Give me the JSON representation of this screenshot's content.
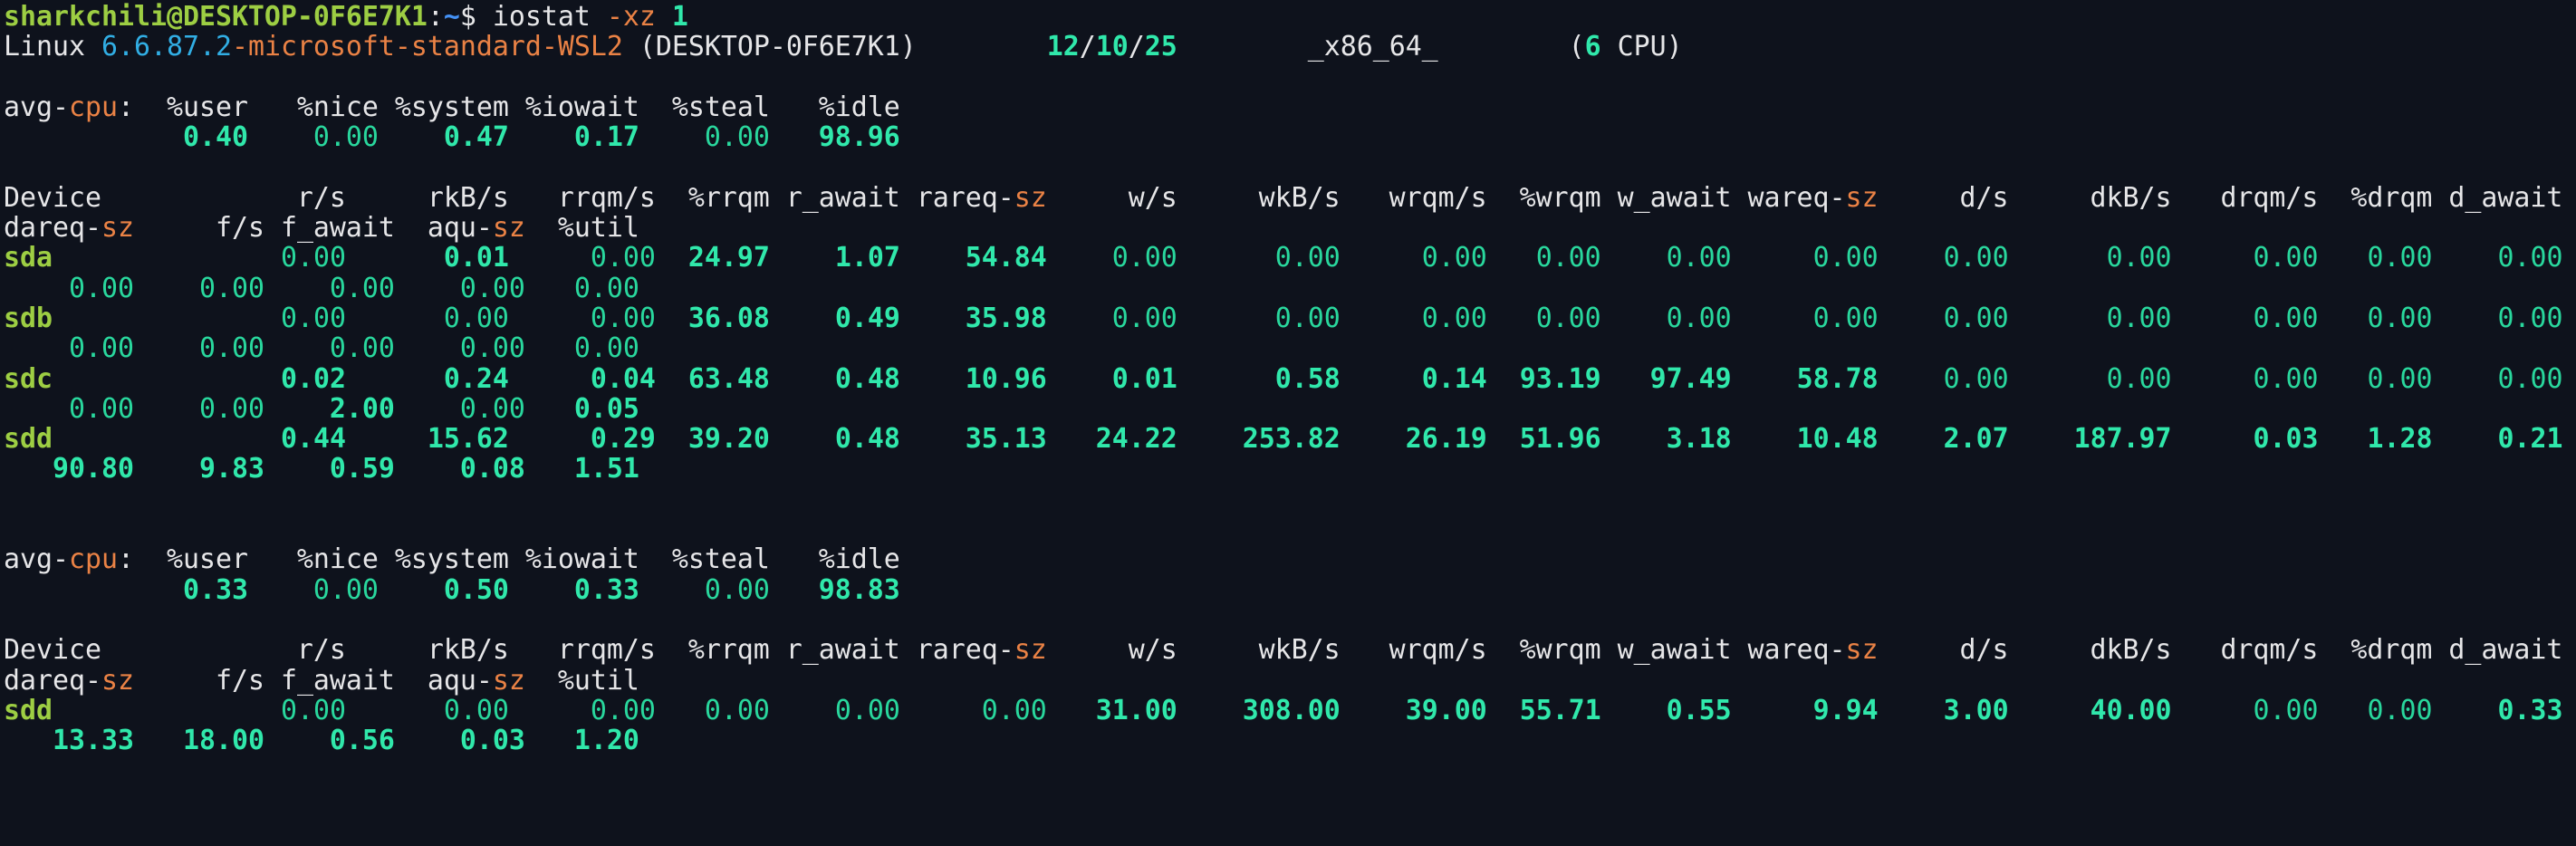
{
  "terminal": {
    "prompt": {
      "user_host": "sharkchili@DESKTOP-0F6E7K1",
      "path": "~",
      "symbol": "$"
    },
    "command": "iostat -xz 1",
    "system": {
      "os": "Linux",
      "kernel": "6.6.87.2-microsoft-standard-WSL2",
      "hostname": "DESKTOP-0F6E7K1",
      "date": "12/10/25",
      "arch": "_x86_64_",
      "cpu_count": "6",
      "cpu_label": "CPU"
    },
    "cpu_columns": [
      "%user",
      "%nice",
      "%system",
      "%iowait",
      "%steal",
      "%idle"
    ],
    "device_columns": [
      "Device",
      "r/s",
      "rkB/s",
      "rrqm/s",
      "%rrqm",
      "r_await",
      "rareq-sz",
      "w/s",
      "wkB/s",
      "wrqm/s",
      "%wrqm",
      "w_await",
      "wareq-sz",
      "d/s",
      "dkB/s",
      "drqm/s",
      "%drqm",
      "d_await",
      "dareq-sz",
      "f/s",
      "f_await",
      "aqu-sz",
      "%util"
    ],
    "reports": [
      {
        "avg_cpu": [
          0.4,
          0.0,
          0.47,
          0.17,
          0.0,
          98.96
        ],
        "devices": {
          "sda": [
            0.0,
            0.01,
            0.0,
            24.97,
            1.07,
            54.84,
            0.0,
            0.0,
            0.0,
            0.0,
            0.0,
            0.0,
            0.0,
            0.0,
            0.0,
            0.0,
            0.0,
            0.0,
            0.0,
            0.0,
            0.0,
            0.0
          ],
          "sdb": [
            0.0,
            0.0,
            0.0,
            36.08,
            0.49,
            35.98,
            0.0,
            0.0,
            0.0,
            0.0,
            0.0,
            0.0,
            0.0,
            0.0,
            0.0,
            0.0,
            0.0,
            0.0,
            0.0,
            0.0,
            0.0,
            0.0
          ],
          "sdc": [
            0.02,
            0.24,
            0.04,
            63.48,
            0.48,
            10.96,
            0.01,
            0.58,
            0.14,
            93.19,
            97.49,
            58.78,
            0.0,
            0.0,
            0.0,
            0.0,
            0.0,
            0.0,
            0.0,
            2.0,
            0.0,
            0.05
          ],
          "sdd": [
            0.44,
            15.62,
            0.29,
            39.2,
            0.48,
            35.13,
            24.22,
            253.82,
            26.19,
            51.96,
            3.18,
            10.48,
            2.07,
            187.97,
            0.03,
            1.28,
            0.21,
            90.8,
            9.83,
            0.59,
            0.08,
            1.51
          ]
        }
      },
      {
        "avg_cpu": [
          0.33,
          0.0,
          0.5,
          0.33,
          0.0,
          98.83
        ],
        "devices": {
          "sdd": [
            0.0,
            0.0,
            0.0,
            0.0,
            0.0,
            0.0,
            31.0,
            308.0,
            39.0,
            55.71,
            0.55,
            9.94,
            3.0,
            40.0,
            0.0,
            0.0,
            0.33,
            13.33,
            18.0,
            0.56,
            0.03,
            1.2
          ]
        }
      }
    ],
    "palette": {
      "bg": "#0e121c",
      "def": "#e6e6e8",
      "lime": "#9dce43",
      "blue": "#4491f5",
      "cyan": "#31aee4",
      "orange": "#ea8245",
      "val": "#30e8ab",
      "zero": "#29d79d"
    },
    "lines": [
      {
        "name": "prompt-line",
        "segments": [
          [
            "lime",
            "sharkchili@DESKTOP-0F6E7K1"
          ],
          [
            "def",
            ":"
          ],
          [
            "blue",
            "~"
          ],
          [
            "def",
            "$ iostat "
          ],
          [
            "orange",
            "-xz"
          ],
          [
            "def",
            " "
          ],
          [
            "val",
            "1"
          ]
        ]
      },
      {
        "name": "system-info-line",
        "segments": [
          [
            "def",
            "Linux "
          ],
          [
            "cyan",
            "6.6.87.2"
          ],
          [
            "orange",
            "-microsoft-standard-WSL2"
          ],
          [
            "def",
            " (DESKTOP-0F6E7K1)        "
          ],
          [
            "val",
            "12"
          ],
          [
            "def",
            "/"
          ],
          [
            "val",
            "10"
          ],
          [
            "def",
            "/"
          ],
          [
            "val",
            "25"
          ],
          [
            "def",
            "        _x86_64_        ("
          ],
          [
            "val",
            "6"
          ],
          [
            "def",
            " CPU)"
          ]
        ]
      },
      {
        "name": "blank-line",
        "segments": []
      },
      {
        "name": "avg-cpu-header-1",
        "segments": [
          [
            "def",
            "avg-"
          ],
          [
            "orange",
            "cpu"
          ],
          [
            "def",
            ":  %user   %nice %system %iowait  %steal   %idle"
          ]
        ]
      },
      {
        "name": "avg-cpu-values-1",
        "segments": [
          [
            "val",
            "           0.40"
          ],
          [
            "zero",
            "    0.00"
          ],
          [
            "val",
            "    0.47"
          ],
          [
            "val",
            "    0.17"
          ],
          [
            "zero",
            "    0.00"
          ],
          [
            "val",
            "   98.96"
          ]
        ]
      },
      {
        "name": "blank-line",
        "segments": []
      },
      {
        "name": "device-header-row-1",
        "segments": [
          [
            "def",
            "Device            r/s     rkB/s   rrqm/s  %rrqm r_await rareq-"
          ],
          [
            "orange",
            "sz"
          ],
          [
            "def",
            "     w/s     wkB/s   wrqm/s  %wrqm w_await wareq-"
          ],
          [
            "orange",
            "sz"
          ],
          [
            "def",
            "     d/s     dkB/s   drqm/s  %drqm d_await"
          ]
        ]
      },
      {
        "name": "device-header-row-2",
        "segments": [
          [
            "def",
            "dareq-"
          ],
          [
            "orange",
            "sz"
          ],
          [
            "def",
            "     f/s f_await  aqu-"
          ],
          [
            "orange",
            "sz"
          ],
          [
            "def",
            "  %util"
          ]
        ]
      },
      {
        "name": "device-row-sda",
        "segments": [
          [
            "lime",
            "sda"
          ],
          [
            "def",
            "          "
          ],
          [
            "zero",
            "    0.00"
          ],
          [
            "val",
            "      0.01"
          ],
          [
            "zero",
            "     0.00"
          ],
          [
            "val",
            "  24.97"
          ],
          [
            "val",
            "    1.07"
          ],
          [
            "val",
            "    54.84"
          ],
          [
            "zero",
            "    0.00"
          ],
          [
            "zero",
            "      0.00"
          ],
          [
            "zero",
            "     0.00"
          ],
          [
            "zero",
            "   0.00"
          ],
          [
            "zero",
            "    0.00"
          ],
          [
            "zero",
            "     0.00"
          ],
          [
            "zero",
            "    0.00"
          ],
          [
            "zero",
            "      0.00"
          ],
          [
            "zero",
            "     0.00"
          ],
          [
            "zero",
            "   0.00"
          ],
          [
            "zero",
            "    0.00"
          ]
        ]
      },
      {
        "name": "device-row-sda-wrap",
        "segments": [
          [
            "zero",
            "    0.00"
          ],
          [
            "zero",
            "    0.00"
          ],
          [
            "zero",
            "    0.00"
          ],
          [
            "zero",
            "    0.00"
          ],
          [
            "zero",
            "   0.00"
          ]
        ]
      },
      {
        "name": "device-row-sdb",
        "segments": [
          [
            "lime",
            "sdb"
          ],
          [
            "def",
            "          "
          ],
          [
            "zero",
            "    0.00"
          ],
          [
            "zero",
            "      0.00"
          ],
          [
            "zero",
            "     0.00"
          ],
          [
            "val",
            "  36.08"
          ],
          [
            "val",
            "    0.49"
          ],
          [
            "val",
            "    35.98"
          ],
          [
            "zero",
            "    0.00"
          ],
          [
            "zero",
            "      0.00"
          ],
          [
            "zero",
            "     0.00"
          ],
          [
            "zero",
            "   0.00"
          ],
          [
            "zero",
            "    0.00"
          ],
          [
            "zero",
            "     0.00"
          ],
          [
            "zero",
            "    0.00"
          ],
          [
            "zero",
            "      0.00"
          ],
          [
            "zero",
            "     0.00"
          ],
          [
            "zero",
            "   0.00"
          ],
          [
            "zero",
            "    0.00"
          ]
        ]
      },
      {
        "name": "device-row-sdb-wrap",
        "segments": [
          [
            "zero",
            "    0.00"
          ],
          [
            "zero",
            "    0.00"
          ],
          [
            "zero",
            "    0.00"
          ],
          [
            "zero",
            "    0.00"
          ],
          [
            "zero",
            "   0.00"
          ]
        ]
      },
      {
        "name": "device-row-sdc",
        "segments": [
          [
            "lime",
            "sdc"
          ],
          [
            "def",
            "          "
          ],
          [
            "val",
            "    0.02"
          ],
          [
            "val",
            "      0.24"
          ],
          [
            "val",
            "     0.04"
          ],
          [
            "val",
            "  63.48"
          ],
          [
            "val",
            "    0.48"
          ],
          [
            "val",
            "    10.96"
          ],
          [
            "val",
            "    0.01"
          ],
          [
            "val",
            "      0.58"
          ],
          [
            "val",
            "     0.14"
          ],
          [
            "val",
            "  93.19"
          ],
          [
            "val",
            "   97.49"
          ],
          [
            "val",
            "    58.78"
          ],
          [
            "zero",
            "    0.00"
          ],
          [
            "zero",
            "      0.00"
          ],
          [
            "zero",
            "     0.00"
          ],
          [
            "zero",
            "   0.00"
          ],
          [
            "zero",
            "    0.00"
          ]
        ]
      },
      {
        "name": "device-row-sdc-wrap",
        "segments": [
          [
            "zero",
            "    0.00"
          ],
          [
            "zero",
            "    0.00"
          ],
          [
            "val",
            "    2.00"
          ],
          [
            "zero",
            "    0.00"
          ],
          [
            "val",
            "   0.05"
          ]
        ]
      },
      {
        "name": "device-row-sdd",
        "segments": [
          [
            "lime",
            "sdd"
          ],
          [
            "def",
            "          "
          ],
          [
            "val",
            "    0.44"
          ],
          [
            "val",
            "     15.62"
          ],
          [
            "val",
            "     0.29"
          ],
          [
            "val",
            "  39.20"
          ],
          [
            "val",
            "    0.48"
          ],
          [
            "val",
            "    35.13"
          ],
          [
            "val",
            "   24.22"
          ],
          [
            "val",
            "    253.82"
          ],
          [
            "val",
            "    26.19"
          ],
          [
            "val",
            "  51.96"
          ],
          [
            "val",
            "    3.18"
          ],
          [
            "val",
            "    10.48"
          ],
          [
            "val",
            "    2.07"
          ],
          [
            "val",
            "    187.97"
          ],
          [
            "val",
            "     0.03"
          ],
          [
            "val",
            "   1.28"
          ],
          [
            "val",
            "    0.21"
          ]
        ]
      },
      {
        "name": "device-row-sdd-wrap",
        "segments": [
          [
            "val",
            "   90.80"
          ],
          [
            "val",
            "    9.83"
          ],
          [
            "val",
            "    0.59"
          ],
          [
            "val",
            "    0.08"
          ],
          [
            "val",
            "   1.51"
          ]
        ]
      },
      {
        "name": "blank-line",
        "segments": []
      },
      {
        "name": "blank-line",
        "segments": []
      },
      {
        "name": "avg-cpu-header-2",
        "segments": [
          [
            "def",
            "avg-"
          ],
          [
            "orange",
            "cpu"
          ],
          [
            "def",
            ":  %user   %nice %system %iowait  %steal   %idle"
          ]
        ]
      },
      {
        "name": "avg-cpu-values-2",
        "segments": [
          [
            "val",
            "           0.33"
          ],
          [
            "zero",
            "    0.00"
          ],
          [
            "val",
            "    0.50"
          ],
          [
            "val",
            "    0.33"
          ],
          [
            "zero",
            "    0.00"
          ],
          [
            "val",
            "   98.83"
          ]
        ]
      },
      {
        "name": "blank-line",
        "segments": []
      },
      {
        "name": "device-header-row-1b",
        "segments": [
          [
            "def",
            "Device            r/s     rkB/s   rrqm/s  %rrqm r_await rareq-"
          ],
          [
            "orange",
            "sz"
          ],
          [
            "def",
            "     w/s     wkB/s   wrqm/s  %wrqm w_await wareq-"
          ],
          [
            "orange",
            "sz"
          ],
          [
            "def",
            "     d/s     dkB/s   drqm/s  %drqm d_await"
          ]
        ]
      },
      {
        "name": "device-header-row-2b",
        "segments": [
          [
            "def",
            "dareq-"
          ],
          [
            "orange",
            "sz"
          ],
          [
            "def",
            "     f/s f_await  aqu-"
          ],
          [
            "orange",
            "sz"
          ],
          [
            "def",
            "  %util"
          ]
        ]
      },
      {
        "name": "device-row-sdd-2",
        "segments": [
          [
            "lime",
            "sdd"
          ],
          [
            "def",
            "          "
          ],
          [
            "zero",
            "    0.00"
          ],
          [
            "zero",
            "      0.00"
          ],
          [
            "zero",
            "     0.00"
          ],
          [
            "zero",
            "   0.00"
          ],
          [
            "zero",
            "    0.00"
          ],
          [
            "zero",
            "     0.00"
          ],
          [
            "val",
            "   31.00"
          ],
          [
            "val",
            "    308.00"
          ],
          [
            "val",
            "    39.00"
          ],
          [
            "val",
            "  55.71"
          ],
          [
            "val",
            "    0.55"
          ],
          [
            "val",
            "     9.94"
          ],
          [
            "val",
            "    3.00"
          ],
          [
            "val",
            "     40.00"
          ],
          [
            "zero",
            "     0.00"
          ],
          [
            "zero",
            "   0.00"
          ],
          [
            "val",
            "    0.33"
          ]
        ]
      },
      {
        "name": "device-row-sdd-2-wrap",
        "segments": [
          [
            "val",
            "   13.33"
          ],
          [
            "val",
            "   18.00"
          ],
          [
            "val",
            "    0.56"
          ],
          [
            "val",
            "    0.03"
          ],
          [
            "val",
            "   1.20"
          ]
        ]
      },
      {
        "name": "blank-line",
        "segments": []
      },
      {
        "name": "blank-line",
        "segments": []
      },
      {
        "name": "blank-line",
        "segments": []
      }
    ]
  }
}
